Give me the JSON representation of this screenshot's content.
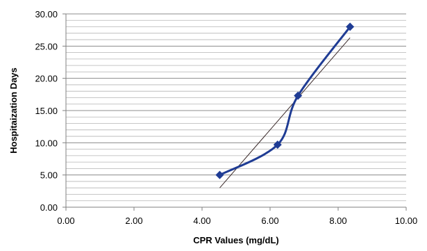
{
  "chart_data": {
    "type": "scatter",
    "title": "",
    "xlabel": "CPR Values (mg/dL)",
    "ylabel": "Hospitaization Days",
    "xlim": [
      0,
      10
    ],
    "ylim": [
      0,
      30
    ],
    "x_ticks": [
      "0.00",
      "2.00",
      "4.00",
      "6.00",
      "8.00",
      "10.00"
    ],
    "y_ticks": [
      "0.00",
      "5.00",
      "10.00",
      "15.00",
      "20.00",
      "25.00",
      "30.00"
    ],
    "x_tick_values": [
      0,
      2,
      4,
      6,
      8,
      10
    ],
    "y_tick_values": [
      0,
      5,
      10,
      15,
      20,
      25,
      30
    ],
    "grid": "horizontal",
    "minor_grid_step": 1,
    "legend": "none",
    "series": [
      {
        "x": [
          4.52,
          6.22,
          6.82,
          8.35
        ],
        "y": [
          5.0,
          9.7,
          17.3,
          28.0
        ],
        "marker": "diamond",
        "line": "smoothed",
        "color": "#1F3C94"
      }
    ],
    "trendline": {
      "type": "linear",
      "x": [
        4.52,
        8.35
      ],
      "y": [
        3.0,
        26.3
      ],
      "color": "#3a2a2a"
    }
  }
}
